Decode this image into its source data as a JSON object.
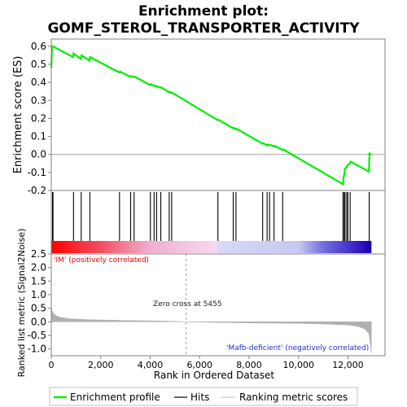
{
  "title_line1": "Enrichment plot:",
  "title_line2": "GOMF_STEROL_TRANSPORTER_ACTIVITY",
  "chart_data": [
    {
      "type": "line",
      "name": "enrichment",
      "ylabel": "Enrichment score (ES)",
      "ylim": [
        -0.2,
        0.64
      ],
      "yticks": [
        -0.2,
        -0.1,
        0.0,
        0.1,
        0.2,
        0.3,
        0.4,
        0.5,
        0.6
      ],
      "ytick_labels": [
        "-0.2",
        "-0.1",
        "0.0",
        "0.1",
        "0.2",
        "0.3",
        "0.4",
        "0.5",
        "0.6"
      ],
      "xlim": [
        0,
        13500
      ],
      "series": [
        {
          "name": "Enrichment profile",
          "color": "#00ee00",
          "x": [
            0,
            30,
            60,
            880,
            900,
            1200,
            1220,
            1550,
            1570,
            2750,
            2780,
            3200,
            3230,
            3340,
            3370,
            4000,
            4030,
            4150,
            4180,
            4250,
            4280,
            4420,
            4450,
            4760,
            4790,
            4860,
            4890,
            6730,
            6760,
            7350,
            7380,
            7460,
            7490,
            8540,
            8570,
            8720,
            8750,
            8820,
            8850,
            9000,
            9030,
            9350,
            9380,
            11800,
            11820,
            11860,
            11880,
            11960,
            11980,
            12080,
            12110,
            12850,
            12870,
            12950
          ],
          "y": [
            0.48,
            0.6,
            0.6,
            0.54,
            0.56,
            0.53,
            0.55,
            0.52,
            0.54,
            0.455,
            0.46,
            0.43,
            0.435,
            0.43,
            0.432,
            0.385,
            0.39,
            0.38,
            0.383,
            0.375,
            0.378,
            0.37,
            0.372,
            0.345,
            0.348,
            0.34,
            0.343,
            0.19,
            0.193,
            0.145,
            0.148,
            0.14,
            0.143,
            0.06,
            0.063,
            0.05,
            0.055,
            0.05,
            0.053,
            0.045,
            0.048,
            0.025,
            0.028,
            -0.165,
            -0.13,
            -0.105,
            -0.08,
            -0.07,
            -0.06,
            -0.05,
            -0.04,
            -0.095,
            0.005,
            0.0
          ]
        }
      ]
    },
    {
      "type": "hits",
      "name": "hits",
      "positions": [
        50,
        70,
        900,
        1210,
        1560,
        2760,
        3210,
        3350,
        4010,
        4160,
        4260,
        4430,
        4770,
        4870,
        6740,
        7360,
        7470,
        8550,
        8730,
        8830,
        9010,
        9360,
        11800,
        11850,
        11880,
        11950,
        12000,
        12090,
        12860
      ]
    },
    {
      "type": "heatmap",
      "name": "rank-colorbar",
      "stops": [
        {
          "x": 0,
          "color": "#ff0000"
        },
        {
          "x": 2000,
          "color": "#f05060"
        },
        {
          "x": 4000,
          "color": "#f0b0d0"
        },
        {
          "x": 6700,
          "color": "#f8d8f0"
        },
        {
          "x": 6750,
          "color": "#d8d8f8"
        },
        {
          "x": 10000,
          "color": "#c8c8f0"
        },
        {
          "x": 11000,
          "color": "#7070e0"
        },
        {
          "x": 12600,
          "color": "#3010c0"
        },
        {
          "x": 12950,
          "color": "#1000a0"
        }
      ]
    },
    {
      "type": "area",
      "name": "ranking-metric",
      "xlabel": "Rank in Ordered Dataset",
      "ylabel": "Ranked list metric (Signal2Noise)",
      "ylim": [
        -1.25,
        2.5
      ],
      "yticks": [
        -1.0,
        -0.5,
        0.0,
        0.5,
        1.0,
        1.5,
        2.0,
        2.5
      ],
      "ytick_labels": [
        "-1.0",
        "-0.5",
        "0.0",
        "0.5",
        "1.0",
        "1.5",
        "2.0",
        "2.5"
      ],
      "xticks": [
        0,
        2000,
        4000,
        6000,
        8000,
        10000,
        12000
      ],
      "xtick_labels": [
        "0",
        "2,000",
        "4,000",
        "6,000",
        "8,000",
        "10,000",
        "12,000"
      ],
      "x": [
        0,
        20,
        80,
        200,
        400,
        800,
        1500,
        3000,
        4500,
        5455,
        6500,
        8000,
        10000,
        11000,
        12000,
        12400,
        12700,
        12850,
        12950
      ],
      "y": [
        0.62,
        0.45,
        0.32,
        0.22,
        0.16,
        0.11,
        0.08,
        0.05,
        0.03,
        0.0,
        -0.02,
        -0.04,
        -0.06,
        -0.08,
        -0.12,
        -0.17,
        -0.27,
        -0.45,
        -1.15
      ],
      "color": "#b0b0b0",
      "annotations": {
        "positive": "'IM' (positively correlated)",
        "zero_cross": "Zero cross at 5455",
        "negative": "'Mafb-deficient' (negatively correlated)"
      },
      "zero_cross": 5455
    }
  ],
  "legend": {
    "items": [
      {
        "label": "Enrichment profile",
        "color": "#00ee00"
      },
      {
        "label": "Hits",
        "color": "#000000"
      },
      {
        "label": "Ranking metric scores",
        "color": "#c0c0c0"
      }
    ]
  }
}
